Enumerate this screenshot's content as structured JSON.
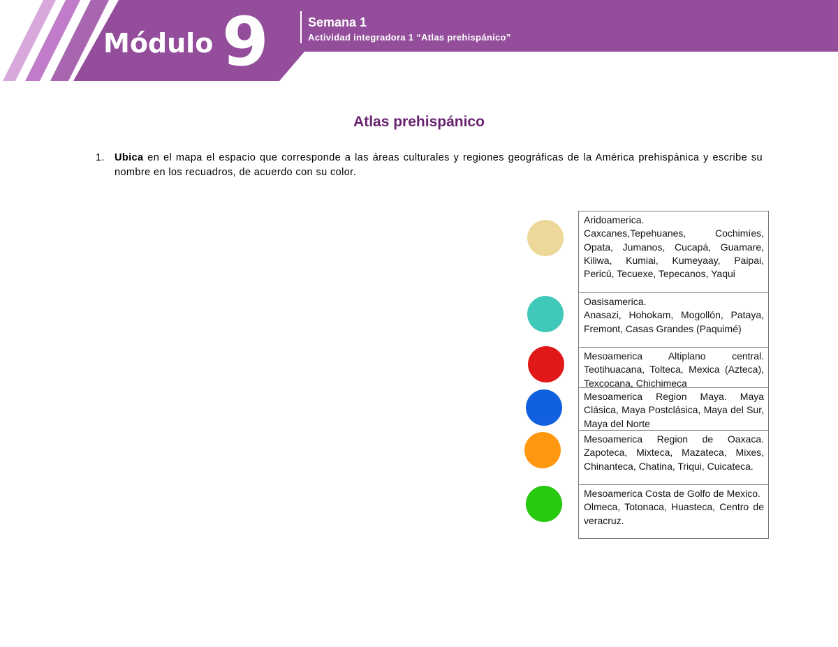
{
  "header": {
    "module_word": "Módulo",
    "module_number": "9",
    "week": "Semana 1",
    "activity": "Actividad integradora 1 “Atlas prehispánico”",
    "color": "#944d9b"
  },
  "title": "Atlas prehispánico",
  "instruction": {
    "number": "1.",
    "bold": "Ubica",
    "text": " en el mapa el espacio que corresponde a las áreas culturales y regiones geográficas de la América prehispánica y escribe su nombre en los recuadros, de acuerdo con su color."
  },
  "legend": [
    {
      "color": "#ecd898",
      "heading": "Aridoamerica.",
      "text": "Caxcanes,Tepehuanes, Cochimíes, Opata, Jumanos, Cucapá, Guamare, Kiliwa, Kumiai, Kumeyaay, Paipai, Pericú, Tecuexe, Tepecanos, Yaqui"
    },
    {
      "color": "#40c8b8",
      "heading": "Oasisamerica.",
      "text": "Anasazi, Hohokam, Mogollón, Pataya, Fremont, Casas Grandes (Paquimé)"
    },
    {
      "color": "#e01818",
      "heading": "Mesoamerica Altiplano central.",
      "text": "Teotihuacana, Tolteca, Mexica (Azteca), Texcocana, Chichimeca"
    },
    {
      "color": "#1060e0",
      "heading": "Mesoamerica Region Maya.",
      "text": "Maya Clásica, Maya Postclásica, Maya del Sur, Maya del Norte"
    },
    {
      "color": "#ff9810",
      "heading": "Mesoamerica Region de Oaxaca.",
      "text": "Zapoteca, Mixteca, Mazateca, Mixes, Chinanteca, Chatina, Triqui, Cuicateca."
    },
    {
      "color": "#28c810",
      "heading": "Mesoamerica Costa de Golfo de Mexico.",
      "text": "Olmeca, Totonaca, Huasteca, Centro de veracruz."
    }
  ]
}
